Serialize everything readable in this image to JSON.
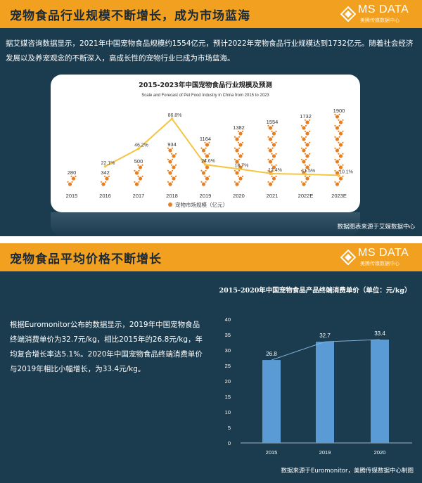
{
  "section1": {
    "title": "宠物食品行业规模不断增长，成为市场蓝海",
    "logo_text": "MS DATA",
    "logo_sub": "美腾传媒数据中心",
    "paragraph": "据艾媒咨询数据显示，2021年中国宠物食品规模约1554亿元，预计2022年宠物食品行业规模达到1732亿元。随着社会经济发展以及养宠观念的不断深入，高成长性的宠物行业已成为市场蓝海。",
    "source": "数据图表来源于艾媒数据中心"
  },
  "section2": {
    "title": "宠物食品平均价格不断增长",
    "logo_text": "MS DATA",
    "logo_sub": "美腾传媒数据中心",
    "paragraph": "根据Euromonitor公布的数据显示，2019年中国宠物食品终端消费单价为32.7元/kg，相比2015年的26.8元/kg，年均复合增长率达5.1%。2020年中国宠物食品终端消费单价与2019年相比小幅增长，为33.4元/kg。",
    "source": "数据来源于Euromonitor，美腾传媒数据中心制图"
  },
  "colors": {
    "banner": "#f2a01f",
    "panel": "#1b3b4e",
    "paw_orange": "#e67e22",
    "growth_line": "#f4c542",
    "bar_blue": "#5b9bd5"
  },
  "chart_data": [
    {
      "type": "bar",
      "title": "2015-2023年中国宠物食品行业规模及预测",
      "subtitle": "Scale and Forecast of Pet Food Industry in China from 2015 to 2023",
      "categories": [
        "2015",
        "2016",
        "2017",
        "2018",
        "2019",
        "2020",
        "2021",
        "2022E",
        "2023E"
      ],
      "series": [
        {
          "name": "宠物市场规模（亿元）",
          "type": "bar",
          "values": [
            280,
            342,
            500,
            934,
            1164,
            1382,
            1554,
            1732,
            1900
          ]
        },
        {
          "name": "增长率",
          "type": "line",
          "values": [
            null,
            22.1,
            46.2,
            86.8,
            24.6,
            18.7,
            12.4,
            11.5,
            10.1
          ]
        }
      ],
      "value_labels": [
        "280",
        "342",
        "500",
        "934",
        "1164",
        "1382",
        "1554",
        "1732",
        "1900"
      ],
      "rate_labels": [
        "",
        "22.1%",
        "46.2%",
        "86.8%",
        "24.6%",
        "18.7%",
        "12.4%",
        "11.5%",
        "10.1%"
      ],
      "legend": [
        "宠物市场规模（亿元）"
      ],
      "legend_position": "bottom",
      "bar_style": "stacked paw icons"
    },
    {
      "type": "bar",
      "title": "2015-2020年中国宠物食品产品终端消费单价（单位：元/kg）",
      "categories": [
        "2015",
        "2019",
        "2020"
      ],
      "values": [
        26.8,
        32.7,
        33.4
      ],
      "value_labels": [
        "26.8",
        "32.7",
        "33.4"
      ],
      "ylim": [
        0,
        40
      ],
      "yticks": [
        "0",
        "5",
        "10",
        "15",
        "20",
        "25",
        "30",
        "35",
        "40"
      ],
      "trend_line": true,
      "grid": false
    }
  ]
}
